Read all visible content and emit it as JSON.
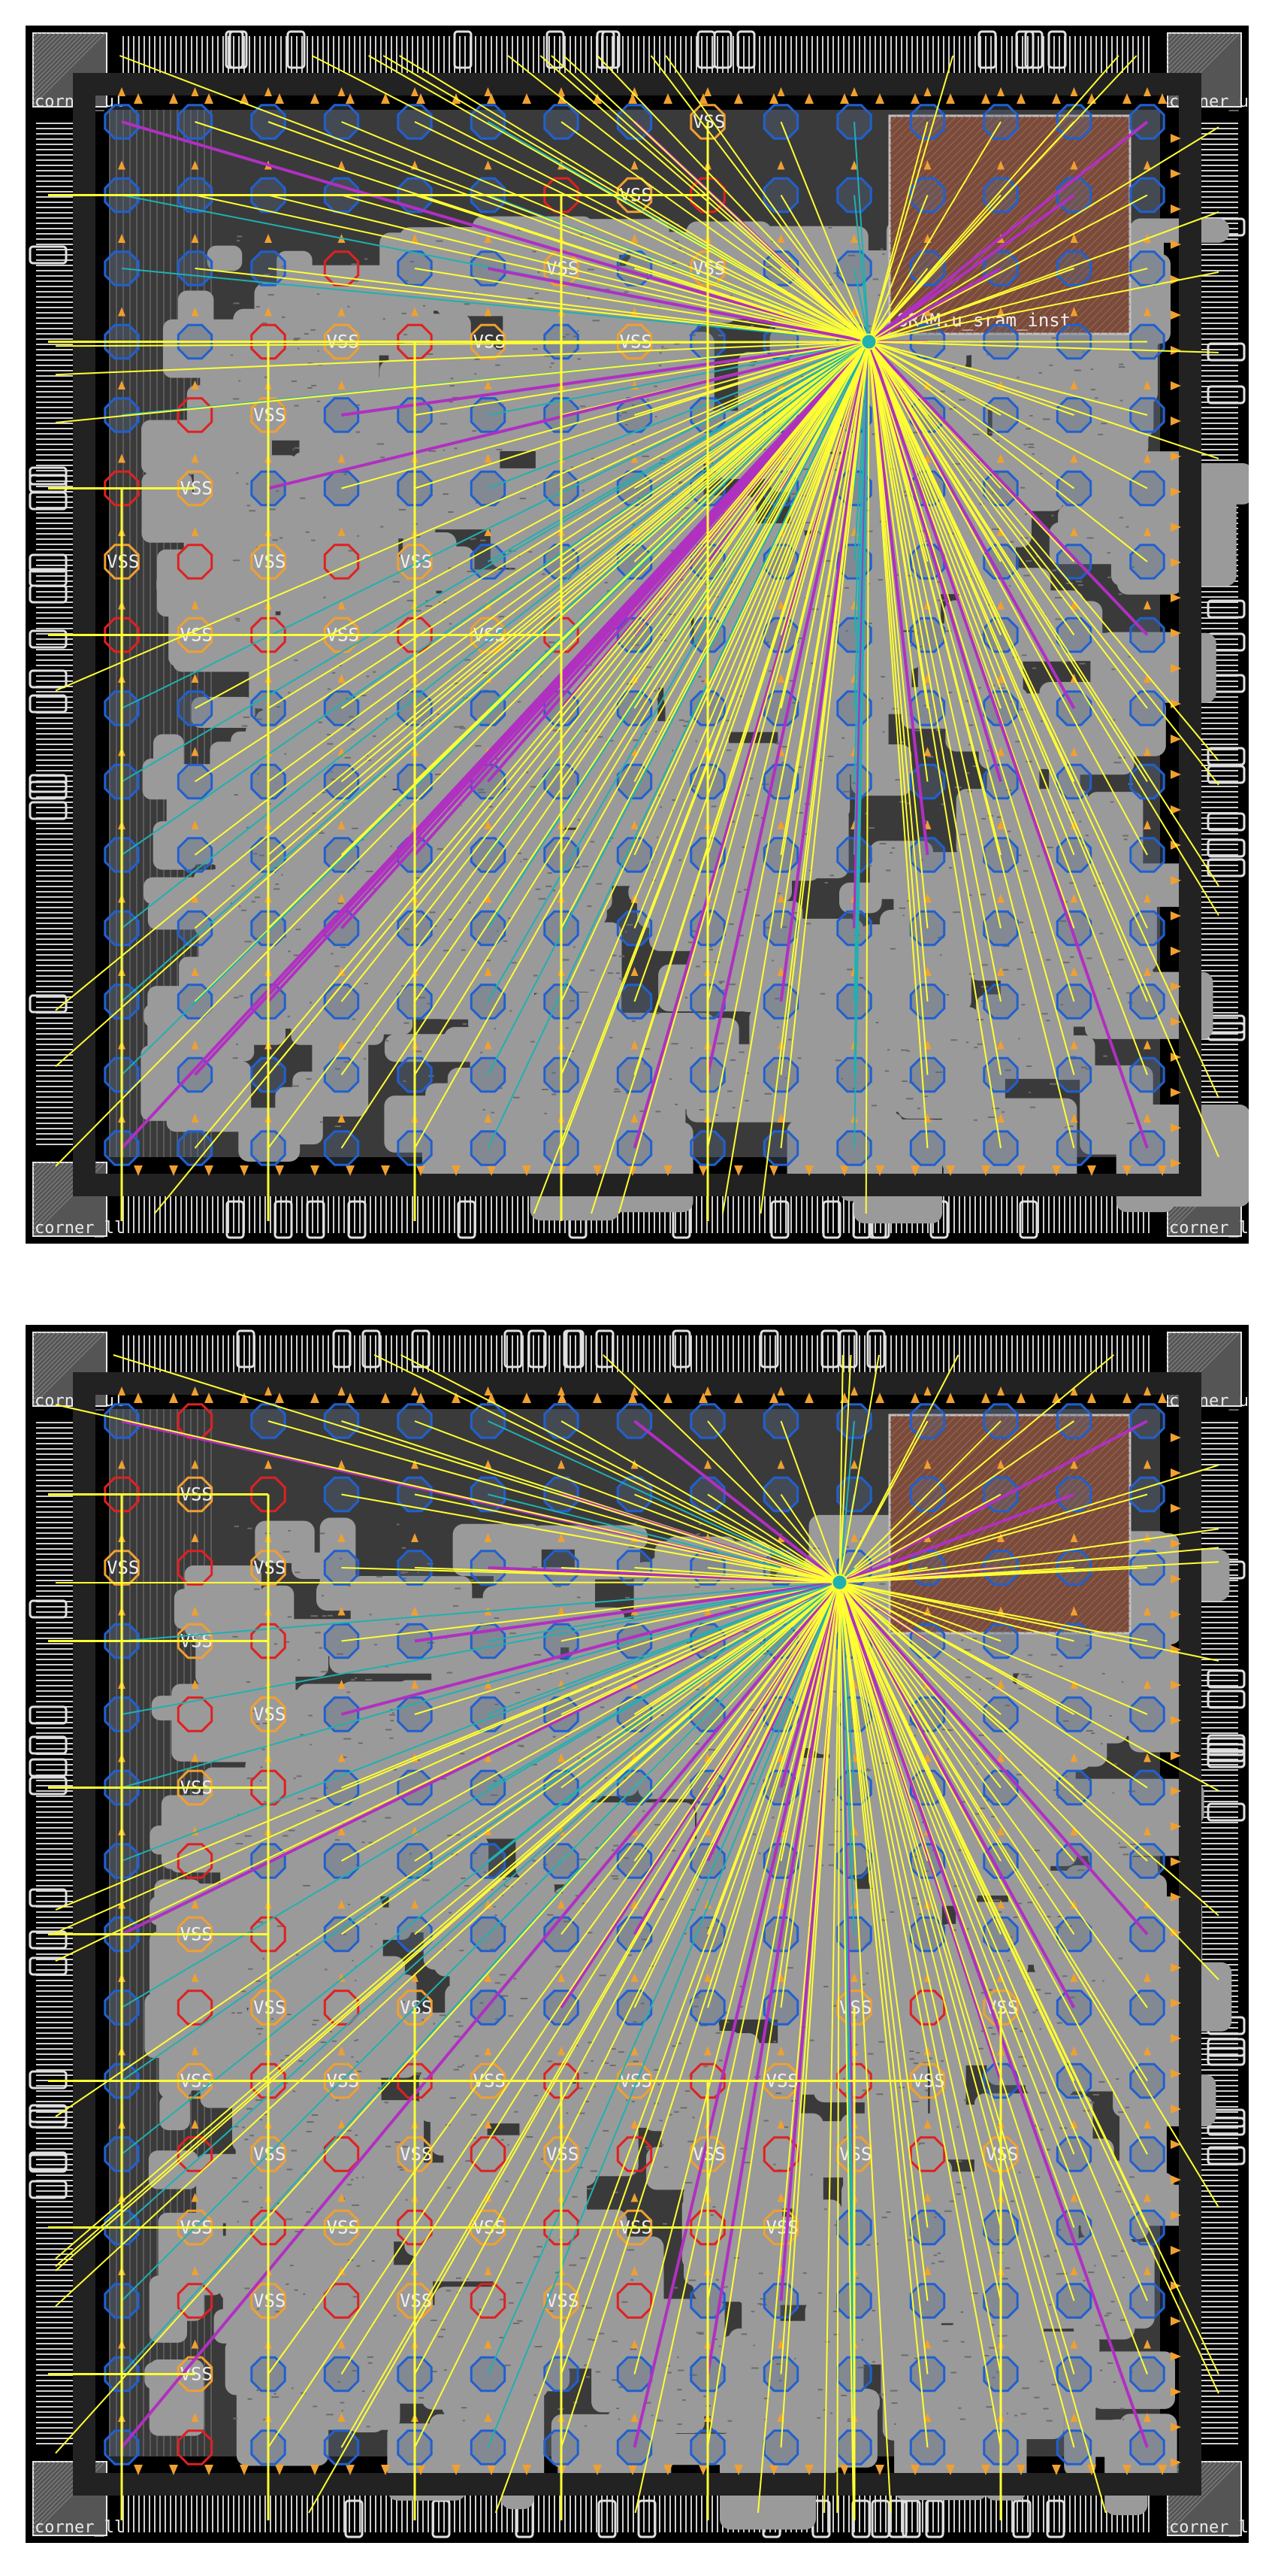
{
  "figure": {
    "panels": [
      {
        "id": "top",
        "corner_labels": {
          "ul": "corner_ul",
          "ur": "corner_ur",
          "ll": "corner_ll",
          "lr": "corner_lr"
        },
        "macro_label": "SRAM.u_sram_inst",
        "vss_label": "VSS",
        "vss_cells": [
          [
            8,
            0
          ],
          [
            7,
            1
          ],
          [
            6,
            1
          ],
          [
            8,
            1
          ],
          [
            6,
            2
          ],
          [
            8,
            2
          ],
          [
            7,
            3
          ],
          [
            5,
            3
          ],
          [
            4,
            3
          ],
          [
            3,
            2
          ],
          [
            3,
            3
          ],
          [
            2,
            3
          ],
          [
            2,
            4
          ],
          [
            1,
            4
          ],
          [
            1,
            5
          ],
          [
            0,
            5
          ],
          [
            2,
            6
          ],
          [
            1,
            6
          ],
          [
            0,
            6
          ],
          [
            3,
            6
          ],
          [
            4,
            6
          ],
          [
            2,
            7
          ],
          [
            3,
            7
          ],
          [
            4,
            7
          ],
          [
            5,
            7
          ],
          [
            6,
            7
          ],
          [
            0,
            7
          ],
          [
            1,
            7
          ]
        ],
        "fan_hub": {
          "col": 10.2,
          "row": 3.0
        }
      },
      {
        "id": "bottom",
        "corner_labels": {
          "ul": "corner_ul",
          "ur": "corner_ur",
          "ll": "corner_ll",
          "lr": "corner_lr"
        },
        "macro_label": "",
        "vss_label": "VSS",
        "vss_cells": [
          [
            0,
            1
          ],
          [
            0,
            2
          ],
          [
            1,
            0
          ],
          [
            1,
            1
          ],
          [
            1,
            2
          ],
          [
            1,
            3
          ],
          [
            1,
            4
          ],
          [
            1,
            5
          ],
          [
            1,
            6
          ],
          [
            1,
            7
          ],
          [
            1,
            8
          ],
          [
            1,
            9
          ],
          [
            1,
            10
          ],
          [
            1,
            11
          ],
          [
            1,
            12
          ],
          [
            1,
            13
          ],
          [
            1,
            14
          ],
          [
            2,
            1
          ],
          [
            2,
            2
          ],
          [
            2,
            3
          ],
          [
            2,
            4
          ],
          [
            2,
            5
          ],
          [
            2,
            7
          ],
          [
            2,
            8
          ],
          [
            2,
            9
          ],
          [
            2,
            10
          ],
          [
            2,
            11
          ],
          [
            2,
            12
          ],
          [
            3,
            8
          ],
          [
            3,
            9
          ],
          [
            3,
            10
          ],
          [
            3,
            11
          ],
          [
            3,
            12
          ],
          [
            4,
            8
          ],
          [
            4,
            9
          ],
          [
            4,
            10
          ],
          [
            4,
            11
          ],
          [
            4,
            12
          ],
          [
            5,
            9
          ],
          [
            5,
            10
          ],
          [
            5,
            11
          ],
          [
            5,
            12
          ],
          [
            6,
            9
          ],
          [
            6,
            10
          ],
          [
            6,
            11
          ],
          [
            6,
            12
          ],
          [
            7,
            9
          ],
          [
            7,
            10
          ],
          [
            7,
            11
          ],
          [
            7,
            12
          ],
          [
            8,
            9
          ],
          [
            8,
            10
          ],
          [
            8,
            11
          ],
          [
            9,
            9
          ],
          [
            9,
            10
          ],
          [
            9,
            11
          ],
          [
            10,
            8
          ],
          [
            10,
            9
          ],
          [
            10,
            10
          ],
          [
            11,
            8
          ],
          [
            11,
            9
          ],
          [
            11,
            10
          ],
          [
            12,
            8
          ],
          [
            12,
            10
          ]
        ],
        "fan_hub": {
          "col": 9.8,
          "row": 2.2
        }
      }
    ]
  },
  "colors": {
    "background": "#000000",
    "core": "#9a9a9a",
    "core_dark": "#6c6c6c",
    "pad_ring": "#bdbdbd",
    "vss_red": "#e02020",
    "vss_orange": "#f0a030",
    "vdd_blue": "#2060d0",
    "yellow": "#ffff33",
    "magenta": "#b030c0",
    "cyan": "#20b0b0",
    "macro": "#7a4a3a"
  }
}
